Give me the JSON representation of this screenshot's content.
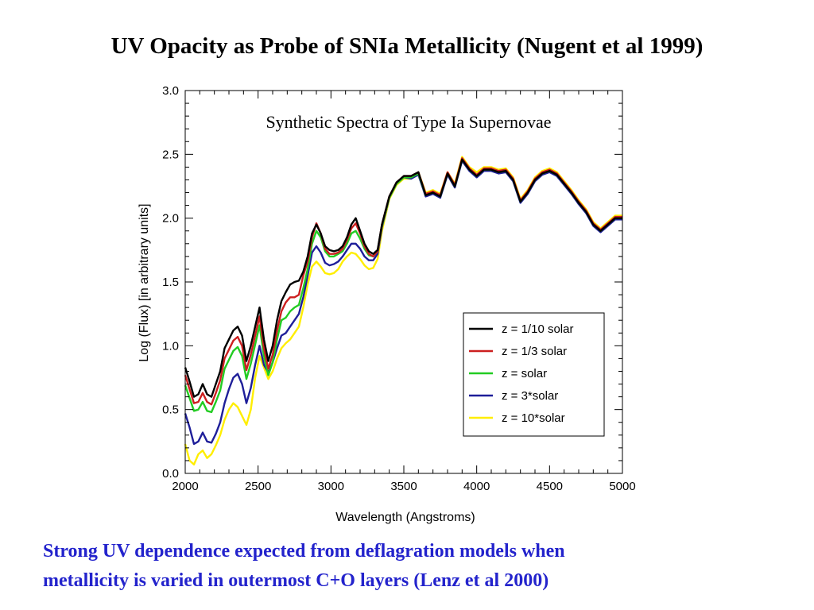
{
  "slide": {
    "title": "UV Opacity as Probe of SNIa Metallicity (Nugent et al 1999)",
    "caption_line1": "Strong UV dependence expected from deflagration models when",
    "caption_line2": "metallicity is varied in outermost C+O layers (Lenz et al 2000)"
  },
  "chart_data": {
    "type": "line",
    "title": "Synthetic Spectra of Type Ia Supernovae",
    "xlabel": "Wavelength (Angstroms)",
    "ylabel": "Log (Flux) [in arbitrary units]",
    "xlim": [
      2000,
      5000
    ],
    "ylim": [
      0.0,
      3.0
    ],
    "xticks": [
      "2000",
      "2500",
      "3000",
      "3500",
      "4000",
      "4500",
      "5000"
    ],
    "yticks": [
      "0.0",
      "0.5",
      "1.0",
      "1.5",
      "2.0",
      "2.5",
      "3.0"
    ],
    "legend_position": "lower-right",
    "grid": false,
    "x": [
      2000,
      2030,
      2060,
      2090,
      2120,
      2150,
      2180,
      2210,
      2240,
      2270,
      2300,
      2330,
      2360,
      2390,
      2420,
      2450,
      2480,
      2510,
      2540,
      2570,
      2600,
      2630,
      2660,
      2690,
      2720,
      2750,
      2780,
      2810,
      2840,
      2870,
      2900,
      2930,
      2960,
      2990,
      3020,
      3050,
      3080,
      3110,
      3140,
      3170,
      3200,
      3230,
      3260,
      3290,
      3320,
      3350,
      3400,
      3450,
      3500,
      3550,
      3600,
      3650,
      3700,
      3750,
      3800,
      3850,
      3900,
      3950,
      4000,
      4050,
      4100,
      4150,
      4200,
      4250,
      4300,
      4350,
      4400,
      4450,
      4500,
      4550,
      4600,
      4650,
      4700,
      4750,
      4800,
      4850,
      4900,
      4950,
      5000
    ],
    "series": [
      {
        "name": "z = 1/10 solar",
        "color": "#000000",
        "y": [
          0.83,
          0.72,
          0.6,
          0.62,
          0.7,
          0.62,
          0.6,
          0.7,
          0.8,
          0.98,
          1.05,
          1.12,
          1.15,
          1.08,
          0.88,
          1.0,
          1.15,
          1.3,
          1.05,
          0.88,
          1.0,
          1.2,
          1.35,
          1.42,
          1.48,
          1.5,
          1.51,
          1.58,
          1.7,
          1.88,
          1.95,
          1.88,
          1.78,
          1.75,
          1.74,
          1.75,
          1.78,
          1.85,
          1.95,
          2.0,
          1.9,
          1.8,
          1.74,
          1.72,
          1.75,
          1.95,
          2.17,
          2.28,
          2.33,
          2.33,
          2.36,
          2.18,
          2.2,
          2.17,
          2.35,
          2.25,
          2.46,
          2.38,
          2.33,
          2.38,
          2.38,
          2.36,
          2.37,
          2.3,
          2.13,
          2.2,
          2.3,
          2.35,
          2.37,
          2.34,
          2.27,
          2.2,
          2.12,
          2.05,
          1.95,
          1.9,
          1.95,
          2.0,
          2.0
        ]
      },
      {
        "name": "z = 1/3 solar",
        "color": "#cc1f1f",
        "y": [
          0.77,
          0.66,
          0.55,
          0.56,
          0.63,
          0.56,
          0.54,
          0.63,
          0.73,
          0.9,
          0.97,
          1.04,
          1.07,
          1.0,
          0.81,
          0.93,
          1.08,
          1.23,
          0.98,
          0.82,
          0.93,
          1.12,
          1.27,
          1.34,
          1.38,
          1.38,
          1.4,
          1.55,
          1.66,
          1.85,
          1.96,
          1.88,
          1.76,
          1.72,
          1.72,
          1.73,
          1.76,
          1.83,
          1.92,
          1.96,
          1.88,
          1.78,
          1.72,
          1.7,
          1.74,
          1.95,
          2.17,
          2.28,
          2.33,
          2.33,
          2.36,
          2.19,
          2.21,
          2.18,
          2.36,
          2.26,
          2.47,
          2.39,
          2.34,
          2.39,
          2.39,
          2.37,
          2.38,
          2.31,
          2.14,
          2.21,
          2.31,
          2.36,
          2.38,
          2.35,
          2.28,
          2.21,
          2.13,
          2.06,
          1.96,
          1.91,
          1.96,
          2.01,
          2.01
        ]
      },
      {
        "name": "z = solar",
        "color": "#22cc22",
        "y": [
          0.69,
          0.59,
          0.49,
          0.5,
          0.56,
          0.49,
          0.48,
          0.56,
          0.65,
          0.82,
          0.89,
          0.96,
          0.99,
          0.92,
          0.74,
          0.86,
          1.01,
          1.16,
          0.92,
          0.77,
          0.87,
          1.05,
          1.2,
          1.22,
          1.27,
          1.3,
          1.32,
          1.45,
          1.6,
          1.8,
          1.9,
          1.85,
          1.74,
          1.7,
          1.7,
          1.72,
          1.74,
          1.8,
          1.88,
          1.9,
          1.84,
          1.76,
          1.71,
          1.7,
          1.74,
          1.94,
          2.16,
          2.27,
          2.32,
          2.32,
          2.35,
          2.18,
          2.2,
          2.17,
          2.35,
          2.25,
          2.46,
          2.38,
          2.33,
          2.38,
          2.38,
          2.36,
          2.37,
          2.3,
          2.13,
          2.2,
          2.3,
          2.35,
          2.37,
          2.34,
          2.27,
          2.2,
          2.12,
          2.05,
          1.95,
          1.9,
          1.95,
          2.0,
          2.0
        ]
      },
      {
        "name": "z = 3*solar",
        "color": "#1e1e99",
        "y": [
          0.47,
          0.36,
          0.23,
          0.25,
          0.32,
          0.25,
          0.24,
          0.31,
          0.4,
          0.55,
          0.66,
          0.75,
          0.78,
          0.7,
          0.55,
          0.67,
          0.85,
          1.0,
          0.85,
          0.79,
          0.87,
          0.98,
          1.08,
          1.1,
          1.15,
          1.2,
          1.25,
          1.38,
          1.55,
          1.73,
          1.78,
          1.73,
          1.65,
          1.63,
          1.64,
          1.66,
          1.7,
          1.75,
          1.8,
          1.8,
          1.76,
          1.7,
          1.67,
          1.67,
          1.72,
          1.93,
          2.16,
          2.27,
          2.32,
          2.31,
          2.34,
          2.17,
          2.19,
          2.16,
          2.34,
          2.24,
          2.45,
          2.37,
          2.32,
          2.37,
          2.37,
          2.35,
          2.36,
          2.29,
          2.12,
          2.19,
          2.29,
          2.34,
          2.36,
          2.33,
          2.26,
          2.19,
          2.11,
          2.04,
          1.94,
          1.89,
          1.94,
          1.99,
          1.99
        ]
      },
      {
        "name": "z = 10*solar",
        "color": "#ffee00",
        "y": [
          0.23,
          0.1,
          0.07,
          0.15,
          0.18,
          0.12,
          0.15,
          0.22,
          0.3,
          0.42,
          0.5,
          0.55,
          0.52,
          0.45,
          0.38,
          0.5,
          0.75,
          0.92,
          0.83,
          0.74,
          0.8,
          0.9,
          0.98,
          1.02,
          1.05,
          1.1,
          1.15,
          1.3,
          1.48,
          1.62,
          1.66,
          1.62,
          1.57,
          1.56,
          1.57,
          1.6,
          1.66,
          1.7,
          1.73,
          1.72,
          1.68,
          1.63,
          1.6,
          1.61,
          1.68,
          1.9,
          2.15,
          2.26,
          2.31,
          2.31,
          2.36,
          2.2,
          2.22,
          2.19,
          2.36,
          2.27,
          2.48,
          2.4,
          2.36,
          2.4,
          2.4,
          2.38,
          2.39,
          2.32,
          2.15,
          2.22,
          2.32,
          2.37,
          2.39,
          2.36,
          2.29,
          2.22,
          2.14,
          2.07,
          1.97,
          1.92,
          1.97,
          2.02,
          2.02
        ]
      }
    ]
  }
}
